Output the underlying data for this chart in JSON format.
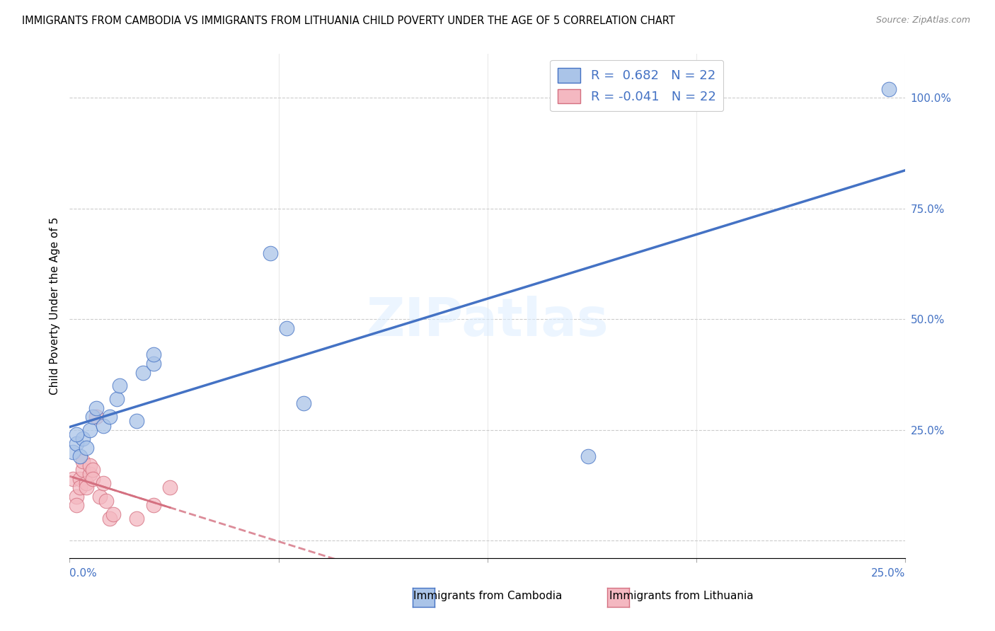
{
  "title": "IMMIGRANTS FROM CAMBODIA VS IMMIGRANTS FROM LITHUANIA CHILD POVERTY UNDER THE AGE OF 5 CORRELATION CHART",
  "source": "Source: ZipAtlas.com",
  "ylabel": "Child Poverty Under the Age of 5",
  "xlim": [
    0,
    0.25
  ],
  "ylim": [
    -0.04,
    1.1
  ],
  "yticks": [
    0.0,
    0.25,
    0.5,
    0.75,
    1.0
  ],
  "ytick_labels": [
    "",
    "25.0%",
    "50.0%",
    "75.0%",
    "100.0%"
  ],
  "xticks": [
    0.0,
    0.0625,
    0.125,
    0.1875,
    0.25
  ],
  "r_cambodia": 0.682,
  "n_cambodia": 22,
  "r_lithuania": -0.041,
  "n_lithuania": 22,
  "color_cambodia": "#aac4e8",
  "color_cambodia_line": "#4472c4",
  "color_lithuania": "#f4b8c1",
  "color_lithuania_line": "#d47080",
  "watermark": "ZIPatlas",
  "cambodia_x": [
    0.001,
    0.002,
    0.003,
    0.004,
    0.005,
    0.006,
    0.007,
    0.008,
    0.01,
    0.012,
    0.014,
    0.015,
    0.02,
    0.022,
    0.025,
    0.025,
    0.06,
    0.065,
    0.07,
    0.155,
    0.002,
    0.245
  ],
  "cambodia_y": [
    0.2,
    0.22,
    0.19,
    0.23,
    0.21,
    0.25,
    0.28,
    0.3,
    0.26,
    0.28,
    0.32,
    0.35,
    0.27,
    0.38,
    0.4,
    0.42,
    0.65,
    0.48,
    0.31,
    0.19,
    0.24,
    1.02
  ],
  "lithuania_x": [
    0.001,
    0.002,
    0.002,
    0.003,
    0.003,
    0.004,
    0.004,
    0.005,
    0.005,
    0.006,
    0.006,
    0.007,
    0.007,
    0.008,
    0.009,
    0.01,
    0.011,
    0.012,
    0.013,
    0.02,
    0.025,
    0.03
  ],
  "lithuania_y": [
    0.14,
    0.1,
    0.08,
    0.14,
    0.12,
    0.16,
    0.18,
    0.13,
    0.12,
    0.15,
    0.17,
    0.16,
    0.14,
    0.28,
    0.1,
    0.13,
    0.09,
    0.05,
    0.06,
    0.05,
    0.08,
    0.12
  ],
  "background_color": "#ffffff",
  "grid_color": "#cccccc"
}
